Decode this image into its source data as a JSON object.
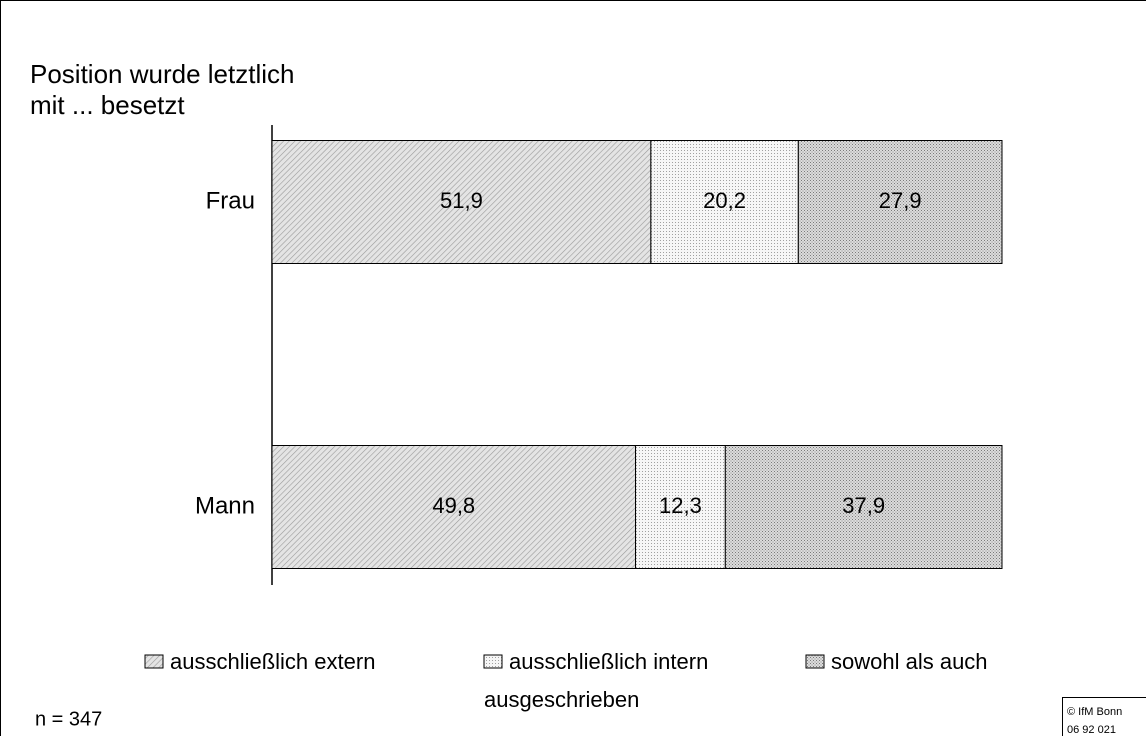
{
  "chart_data": {
    "type": "stacked_barh",
    "title": [
      "Position wurde letztlich",
      "mit ... besetzt"
    ],
    "categories": [
      "Frau",
      "Mann"
    ],
    "series": [
      {
        "name": "ausschließlich extern",
        "color": "#c8c8c8",
        "values": [
          51.9,
          49.8
        ],
        "value_labels": [
          "51,9",
          "49,8"
        ]
      },
      {
        "name": "ausschließlich intern",
        "color": "#e6e6e6",
        "values": [
          20.2,
          12.3
        ],
        "value_labels": [
          "20,2",
          "12,3"
        ]
      },
      {
        "name": "sowohl als auch",
        "color": "#b4b4b4",
        "values": [
          27.9,
          37.9
        ],
        "value_labels": [
          "27,9",
          "37,9"
        ]
      }
    ],
    "xlim": [
      0,
      100
    ],
    "legend_note": "ausgeschrieben",
    "note": "n = 347",
    "source": [
      "© IfM Bonn",
      "06 92 021"
    ]
  }
}
